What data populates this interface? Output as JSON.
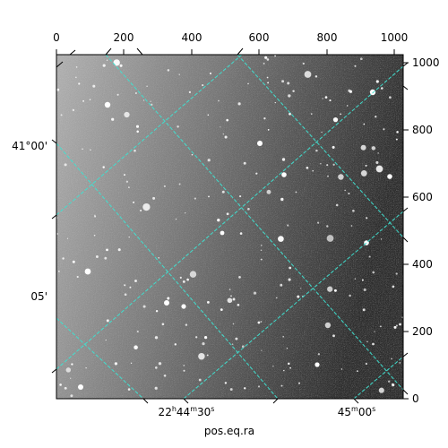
{
  "image": {
    "description_colors": {
      "sky_light": "#b0b0b0",
      "sky_dark": "#2a2a2a",
      "grid": "#40e0d0"
    }
  },
  "axes": {
    "top_ticks": [
      "0",
      "200",
      "400",
      "600",
      "800",
      "1000"
    ],
    "right_ticks": [
      "1000",
      "800",
      "600",
      "400",
      "200",
      "0"
    ],
    "left_ticks": [
      "41°00'",
      "05'"
    ],
    "bottom_ra_ticks": [
      "22h44m30s",
      "45m00s"
    ],
    "xlabel": "pos.eq.ra"
  },
  "ra_label": {
    "h": "22",
    "m": "44",
    "s": "30"
  },
  "ra_label2": {
    "m": "45",
    "s": "00"
  }
}
